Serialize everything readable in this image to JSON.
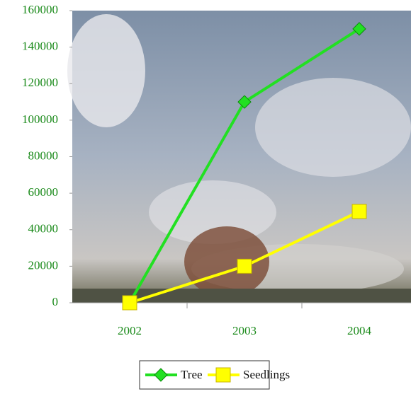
{
  "chart_data": {
    "type": "line",
    "categories": [
      "2002",
      "2003",
      "2004"
    ],
    "series": [
      {
        "name": "Tree",
        "color": "#22e022",
        "marker": "diamond",
        "values": [
          0,
          110000,
          150000
        ]
      },
      {
        "name": "Seedlings",
        "color": "#ffff00",
        "marker": "square",
        "values": [
          0,
          20000,
          50000
        ]
      }
    ],
    "ylim": [
      0,
      160000
    ],
    "yticks": [
      0,
      20000,
      40000,
      60000,
      80000,
      100000,
      120000,
      140000,
      160000
    ],
    "grid": false,
    "legend": "bottom"
  }
}
